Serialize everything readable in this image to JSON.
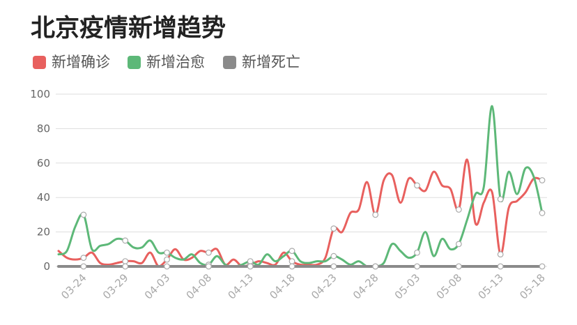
{
  "chart_data": {
    "type": "line",
    "title": "北京疫情新增趋势",
    "ylim": [
      0,
      100
    ],
    "yticks": [
      0,
      20,
      40,
      60,
      80,
      100
    ],
    "grid": true,
    "legend_position": "top-left",
    "xticks": [
      "03-24",
      "03-29",
      "04-03",
      "04-08",
      "04-13",
      "04-18",
      "04-23",
      "04-28",
      "05-03",
      "05-08",
      "05-13",
      "05-18"
    ],
    "x": [
      "03-21",
      "03-22",
      "03-23",
      "03-24",
      "03-25",
      "03-26",
      "03-27",
      "03-28",
      "03-29",
      "03-30",
      "03-31",
      "04-01",
      "04-02",
      "04-03",
      "04-04",
      "04-05",
      "04-06",
      "04-07",
      "04-08",
      "04-09",
      "04-10",
      "04-11",
      "04-12",
      "04-13",
      "04-14",
      "04-15",
      "04-16",
      "04-17",
      "04-18",
      "04-19",
      "04-20",
      "04-21",
      "04-22",
      "04-23",
      "04-24",
      "04-25",
      "04-26",
      "04-27",
      "04-28",
      "04-29",
      "04-30",
      "05-01",
      "05-02",
      "05-03",
      "05-04",
      "05-05",
      "05-06",
      "05-07",
      "05-08",
      "05-09",
      "05-10",
      "05-11",
      "05-12",
      "05-13",
      "05-14",
      "05-15",
      "05-16",
      "05-17",
      "05-18"
    ],
    "series": [
      {
        "name": "新增确诊",
        "color": "#e8605e",
        "values": [
          9,
          5,
          4,
          5,
          8,
          2,
          1,
          2,
          3,
          3,
          2,
          8,
          0,
          4,
          10,
          4,
          5,
          9,
          8,
          10,
          1,
          4,
          0,
          1,
          3,
          2,
          1,
          8,
          3,
          1,
          1,
          1,
          5,
          22,
          20,
          31,
          33,
          49,
          30,
          50,
          53,
          37,
          51,
          47,
          44,
          55,
          47,
          45,
          33,
          62,
          25,
          37,
          43,
          7,
          34,
          38,
          43,
          51,
          50
        ]
      },
      {
        "name": "新增治愈",
        "color": "#5db878",
        "values": [
          7,
          9,
          23,
          30,
          10,
          12,
          13,
          16,
          15,
          11,
          11,
          15,
          8,
          8,
          5,
          4,
          7,
          2,
          1,
          6,
          1,
          0,
          1,
          3,
          1,
          7,
          3,
          6,
          9,
          3,
          2,
          3,
          3,
          6,
          4,
          1,
          3,
          0,
          0,
          2,
          13,
          9,
          5,
          8,
          20,
          6,
          16,
          10,
          13,
          27,
          42,
          46,
          93,
          39,
          55,
          42,
          57,
          52,
          31
        ]
      },
      {
        "name": "新增死亡",
        "color": "#8a8a8a",
        "values": [
          0,
          0,
          0,
          0,
          0,
          0,
          0,
          0,
          0,
          0,
          0,
          0,
          0,
          0,
          0,
          0,
          0,
          0,
          0,
          0,
          0,
          0,
          0,
          0,
          0,
          0,
          0,
          0,
          0,
          0,
          0,
          0,
          0,
          0,
          0,
          0,
          0,
          0,
          0,
          0,
          0,
          0,
          0,
          0,
          0,
          0,
          0,
          0,
          0,
          0,
          0,
          0,
          0,
          0,
          0,
          0,
          0,
          0,
          0
        ]
      }
    ]
  }
}
